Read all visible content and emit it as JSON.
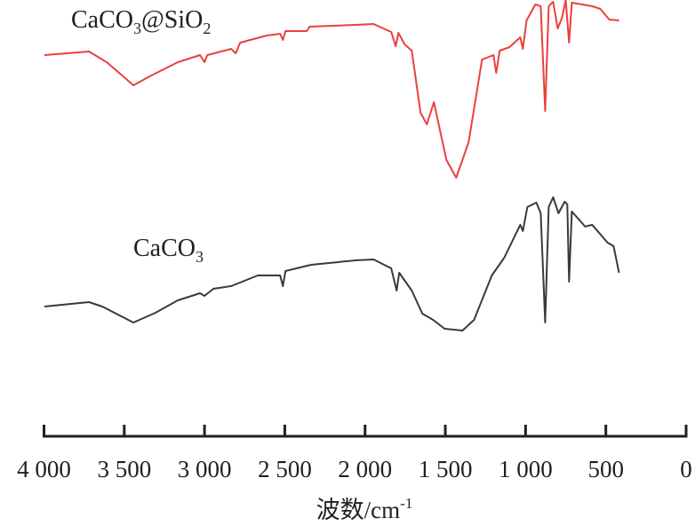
{
  "chart_data": {
    "type": "line",
    "title": "",
    "xlabel": "波数/cm",
    "xlabel_superscript": "-1",
    "ylabel": "",
    "xlim": [
      4000,
      0
    ],
    "x_reversed": true,
    "ylim": [
      0,
      100
    ],
    "y_unit": "transmittance (a.u.)",
    "grid": false,
    "x_ticks": [
      4000,
      3500,
      3000,
      2500,
      2000,
      1500,
      1000,
      500,
      0
    ],
    "x_tick_labels": [
      "4 000",
      "3 500",
      "3 000",
      "2 500",
      "2 000",
      "1 500",
      "1 000",
      "500",
      "0"
    ],
    "series": [
      {
        "name": "CaCO3@SiO2",
        "color": "#e8413c",
        "points": [
          [
            3997,
            88.6
          ],
          [
            3720,
            89.4
          ],
          [
            3609,
            87
          ],
          [
            3443,
            81.8
          ],
          [
            3332,
            84
          ],
          [
            3166,
            87
          ],
          [
            3028,
            88.6
          ],
          [
            3000,
            87
          ],
          [
            2983,
            88.6
          ],
          [
            2834,
            90
          ],
          [
            2806,
            89
          ],
          [
            2778,
            91.4
          ],
          [
            2612,
            93
          ],
          [
            2529,
            93.4
          ],
          [
            2512,
            92
          ],
          [
            2496,
            94
          ],
          [
            2363,
            94
          ],
          [
            2346,
            95
          ],
          [
            2058,
            95.4
          ],
          [
            1947,
            95.6
          ],
          [
            1837,
            93.8
          ],
          [
            1809,
            90.6
          ],
          [
            1792,
            93.6
          ],
          [
            1753,
            91
          ],
          [
            1709,
            89.6
          ],
          [
            1654,
            75.6
          ],
          [
            1615,
            73
          ],
          [
            1571,
            78
          ],
          [
            1493,
            65
          ],
          [
            1432,
            61
          ],
          [
            1355,
            69
          ],
          [
            1271,
            87.6
          ],
          [
            1200,
            88.6
          ],
          [
            1183,
            84.6
          ],
          [
            1161,
            89.6
          ],
          [
            1100,
            90.4
          ],
          [
            1033,
            92.6
          ],
          [
            1017,
            90
          ],
          [
            994,
            96.4
          ],
          [
            939,
            100
          ],
          [
            906,
            99.6
          ],
          [
            878,
            76
          ],
          [
            856,
            99.6
          ],
          [
            828,
            100.6
          ],
          [
            800,
            94.6
          ],
          [
            773,
            97
          ],
          [
            750,
            101
          ],
          [
            729,
            91.4
          ],
          [
            712,
            100.4
          ],
          [
            585,
            99.6
          ],
          [
            535,
            99
          ],
          [
            479,
            96.6
          ],
          [
            418,
            96.4
          ]
        ]
      },
      {
        "name": "CaCO3",
        "color": "#3a3a3a",
        "points": [
          [
            3997,
            32
          ],
          [
            3720,
            33
          ],
          [
            3637,
            32
          ],
          [
            3443,
            28.4
          ],
          [
            3305,
            30.6
          ],
          [
            3166,
            33.4
          ],
          [
            3028,
            35
          ],
          [
            3000,
            34.4
          ],
          [
            2945,
            36
          ],
          [
            2834,
            36.6
          ],
          [
            2668,
            39
          ],
          [
            2529,
            39
          ],
          [
            2512,
            36.6
          ],
          [
            2496,
            40
          ],
          [
            2335,
            41.4
          ],
          [
            2058,
            42.4
          ],
          [
            1947,
            42.6
          ],
          [
            1837,
            40.6
          ],
          [
            1803,
            35.6
          ],
          [
            1787,
            39.6
          ],
          [
            1709,
            35.6
          ],
          [
            1643,
            30.4
          ],
          [
            1576,
            29
          ],
          [
            1504,
            27
          ],
          [
            1393,
            26.6
          ],
          [
            1321,
            29
          ],
          [
            1210,
            39
          ],
          [
            1133,
            43
          ],
          [
            1033,
            50.4
          ],
          [
            1017,
            49
          ],
          [
            989,
            54.4
          ],
          [
            933,
            55.4
          ],
          [
            906,
            53
          ],
          [
            878,
            28.4
          ],
          [
            856,
            54.4
          ],
          [
            828,
            56.6
          ],
          [
            795,
            53
          ],
          [
            756,
            55.6
          ],
          [
            740,
            55
          ],
          [
            729,
            37.6
          ],
          [
            712,
            53.4
          ],
          [
            629,
            50
          ],
          [
            585,
            50.4
          ],
          [
            490,
            46.4
          ],
          [
            452,
            45.6
          ],
          [
            418,
            39.6
          ]
        ]
      }
    ],
    "annotations": [
      {
        "text": "CaCO3@SiO2",
        "series": "CaCO3@SiO2",
        "position": "top-left"
      },
      {
        "text": "CaCO3",
        "series": "CaCO3",
        "position": "above-curve-left"
      }
    ]
  }
}
